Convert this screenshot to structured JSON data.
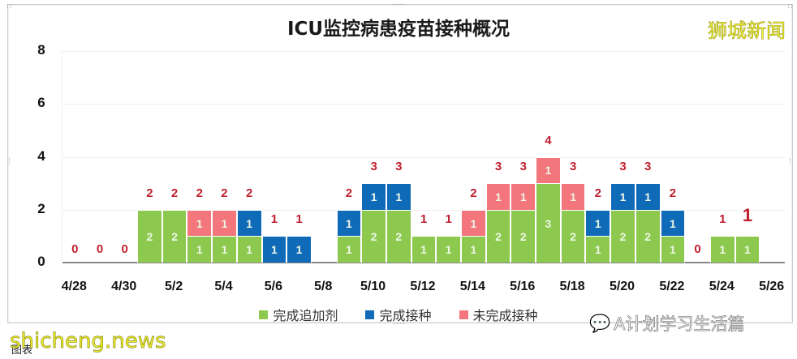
{
  "chart_data": {
    "type": "bar",
    "stacked": true,
    "title": "ICU监控病患疫苗接种概况",
    "xlabel": "",
    "ylabel": "",
    "ylim": [
      0,
      8
    ],
    "yticks": [
      "0",
      "2",
      "4",
      "6",
      "8"
    ],
    "grid": true,
    "legend_position": "bottom",
    "categories": [
      "4/28",
      "4/29",
      "4/30",
      "5/1",
      "5/2",
      "5/3",
      "5/4",
      "5/5",
      "5/6",
      "5/7",
      "5/8",
      "5/9",
      "5/10",
      "5/11",
      "5/12",
      "5/13",
      "5/14",
      "5/15",
      "5/16",
      "5/17",
      "5/18",
      "5/19",
      "5/20",
      "5/21",
      "5/22",
      "5/23",
      "5/24",
      "5/25",
      "5/26"
    ],
    "xtick_labels": [
      "4/28",
      "4/30",
      "5/2",
      "5/4",
      "5/6",
      "5/8",
      "5/10",
      "5/12",
      "5/14",
      "5/16",
      "5/18",
      "5/20",
      "5/22",
      "5/24",
      "5/26"
    ],
    "series": [
      {
        "name": "完成追加剂",
        "color": "#8DC94F",
        "values": [
          0,
          0,
          0,
          2,
          2,
          1,
          1,
          1,
          0,
          0,
          0,
          1,
          2,
          2,
          1,
          1,
          1,
          2,
          2,
          3,
          2,
          1,
          2,
          2,
          1,
          0,
          1,
          1,
          0
        ]
      },
      {
        "name": "完成接种",
        "color": "#0F6AB8",
        "values": [
          0,
          0,
          0,
          0,
          0,
          0,
          0,
          1,
          1,
          1,
          0,
          1,
          1,
          1,
          0,
          0,
          0,
          0,
          0,
          0,
          0,
          1,
          1,
          1,
          1,
          0,
          0,
          0,
          0
        ]
      },
      {
        "name": "未完成接种",
        "color": "#F2767B",
        "values": [
          0,
          0,
          0,
          0,
          0,
          1,
          1,
          0,
          0,
          0,
          0,
          0,
          0,
          0,
          0,
          0,
          1,
          1,
          1,
          1,
          1,
          0,
          0,
          0,
          0,
          0,
          0,
          0,
          0
        ]
      }
    ],
    "totals": [
      0,
      0,
      0,
      2,
      2,
      2,
      2,
      2,
      1,
      1,
      null,
      2,
      3,
      3,
      1,
      1,
      2,
      3,
      3,
      4,
      3,
      2,
      3,
      3,
      2,
      0,
      1,
      1,
      null
    ],
    "total_label_color": "#C0202F"
  },
  "header": {
    "title": "ICU监控病患疫苗接种概况",
    "brand": "狮城新闻"
  },
  "legend": [
    {
      "label": "完成追加剂",
      "color": "#8DC94F"
    },
    {
      "label": "完成接种",
      "color": "#0F6AB8"
    },
    {
      "label": "未完成接种",
      "color": "#F2767B"
    }
  ],
  "watermarks": {
    "site": "shicheng.news",
    "sub": "图表",
    "account": "A计划学习生活篇"
  }
}
